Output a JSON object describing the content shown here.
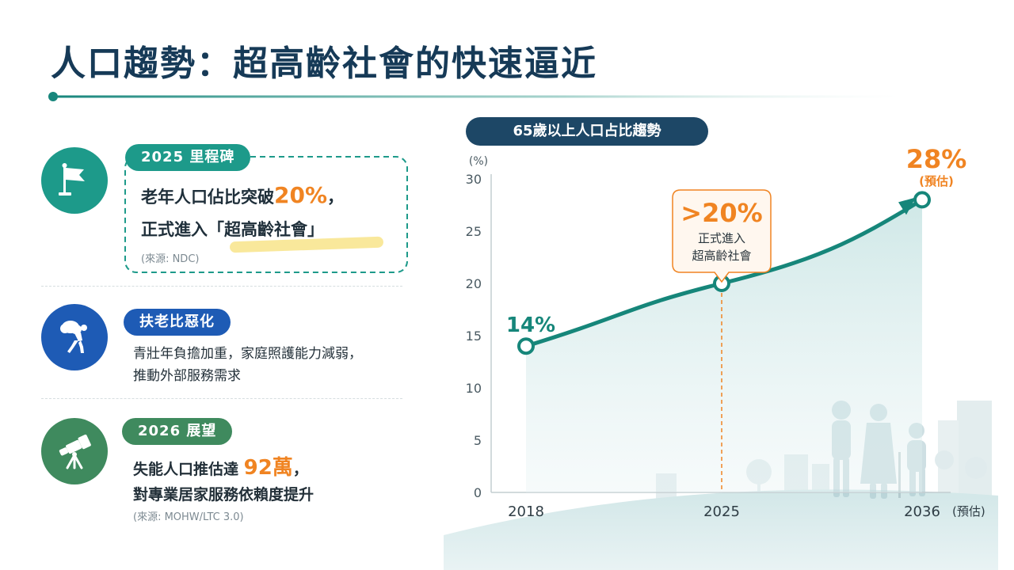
{
  "title": "人口趨勢：超高齡社會的快速逼近",
  "cards": [
    {
      "tag": "2025 里程碑",
      "line1_pre": "老年人口佔比突破",
      "line1_highlight": "20%",
      "line1_post": "，",
      "line2_pre": "正式進入",
      "line2_highlight": "「超高齡社會」",
      "source": "(來源: NDC)",
      "icon": "flag-icon",
      "color": "#1d9a8a"
    },
    {
      "tag": "扶老比惡化",
      "line1": "青壯年負擔加重，家庭照護能力減弱，",
      "line2": "推動外部服務需求",
      "icon": "person-carrying-load-icon",
      "color": "#1e5bb5"
    },
    {
      "tag": "2026 展望",
      "line1_pre": "失能人口推估達 ",
      "line1_highlight": "92萬",
      "line1_post": "，",
      "line2": "對專業居家服務依賴度提升",
      "source": "(來源: MOHW/LTC 3.0)",
      "icon": "telescope-icon",
      "color": "#3f8a5e"
    }
  ],
  "chart_data": {
    "type": "line",
    "title": "65歲以上人口占比趨勢",
    "ylabel": "(%)",
    "ylim": [
      0,
      30
    ],
    "yticks": [
      0,
      5,
      10,
      15,
      20,
      25,
      30
    ],
    "x": [
      "2018",
      "2025",
      "2036"
    ],
    "x_note": "(預估)",
    "series": [
      {
        "values": [
          14,
          20,
          28
        ]
      }
    ],
    "labels": [
      {
        "text": "14%"
      },
      {
        "text": ">20%",
        "sub1": "正式進入",
        "sub2": "超高齡社會"
      },
      {
        "text": "28%",
        "sub1": "(預估)"
      }
    ],
    "colors": {
      "line": "#16867a",
      "accent": "#f08422",
      "axis": "#8b979d"
    }
  }
}
